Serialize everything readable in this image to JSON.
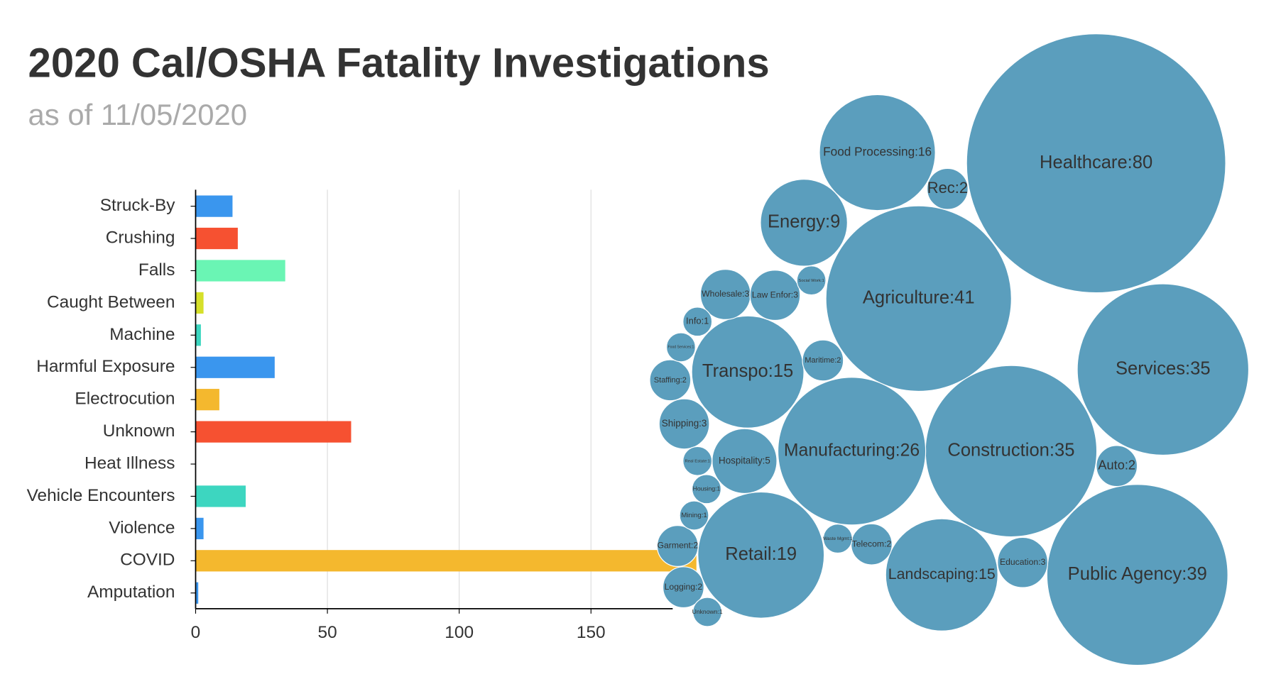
{
  "chart_data": [
    {
      "type": "bar",
      "orientation": "horizontal",
      "title": "2020 Cal/OSHA Fatality Investigations",
      "subtitle": "as of 11/05/2020",
      "categories": [
        "Struck-By",
        "Crushing",
        "Falls",
        "Caught Between",
        "Machine",
        "Harmful Exposure",
        "Electrocution",
        "Unknown",
        "Heat Illness",
        "Vehicle Encounters",
        "Violence",
        "COVID",
        "Amputation"
      ],
      "values": [
        14,
        16,
        34,
        3,
        2,
        30,
        9,
        59,
        0,
        19,
        3,
        190,
        1
      ],
      "colors": [
        "#3a96ee",
        "#f65131",
        "#6af5b4",
        "#d6e02a",
        "#3dd6c0",
        "#3a96ee",
        "#f4b82e",
        "#f65131",
        "#3dd6c0",
        "#3dd6c0",
        "#3a96ee",
        "#f4b82e",
        "#3a96ee"
      ],
      "xlim": [
        0,
        181
      ],
      "xticks": [
        0,
        50,
        100,
        150
      ],
      "grid": true
    },
    {
      "type": "bubble",
      "categories": [
        "Healthcare",
        "Agriculture",
        "Services",
        "Construction",
        "Public Agency",
        "Manufacturing",
        "Retail",
        "Food Processing",
        "Transpo",
        "Landscaping",
        "Energy",
        "Hospitality",
        "Wholesale",
        "Law Enfor",
        "Shipping",
        "Education",
        "Rec",
        "Maritime",
        "Staffing",
        "Auto",
        "Garment",
        "Logging",
        "Telecom",
        "Social Work",
        "Info",
        "Food Services",
        "Real Estate",
        "Housing",
        "Mining",
        "Waste Mgmt",
        "Unknown"
      ],
      "values": [
        80,
        41,
        35,
        35,
        39,
        26,
        19,
        16,
        15,
        15,
        9,
        5,
        3,
        3,
        3,
        3,
        2,
        2,
        2,
        2,
        2,
        2,
        2,
        1,
        1,
        1,
        1,
        1,
        1,
        1,
        1
      ],
      "value_labels": [
        "Healthcare:80",
        "Agriculture:41",
        "Services:35",
        "Construction:35",
        "Public Agency:39",
        "Manufacturing:26",
        "Retail:19",
        "Food Processing:16",
        "Transpo:15",
        "Landscaping:15",
        "Energy:9",
        "Hospitality:5",
        "Wholesale:3",
        "Law Enfor:3",
        "Shipping:3",
        "Education:3",
        "Rec:2",
        "Maritime:2",
        "Staffing:2",
        "Auto:2",
        "Garment:2",
        "Logging:2",
        "Telecom:2",
        "Social Work:1",
        "Info:1",
        "Food Services:1",
        "Real Estate:1",
        "Housing:1",
        "Mining:1",
        "Waste Mgmt:1",
        "Unknown:1"
      ],
      "color": "#5b9ebd"
    }
  ]
}
